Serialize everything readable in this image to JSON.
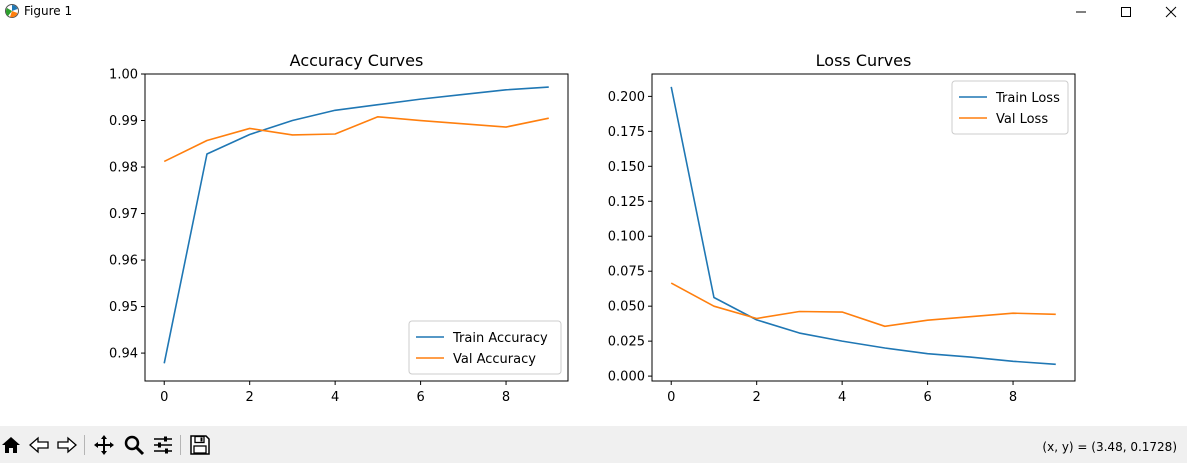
{
  "window": {
    "title": "Figure 1"
  },
  "window_controls": {
    "minimize": "minimize-icon",
    "maximize": "maximize-icon",
    "close": "close-icon"
  },
  "toolbar": {
    "tools": [
      "home-icon",
      "back-arrow-icon",
      "forward-arrow-icon",
      "pan-icon",
      "zoom-icon",
      "configure-subplots-icon",
      "save-icon"
    ],
    "coords": "(x, y) = (3.48, 0.1728)"
  },
  "colors": {
    "train": "#1f77b4",
    "val": "#ff7f0e"
  },
  "chart_data": [
    {
      "type": "line",
      "title": "Accuracy Curves",
      "xlim": [
        -0.45,
        9.45
      ],
      "ylim": [
        0.934,
        1.0
      ],
      "xticks": [
        0,
        2,
        4,
        6,
        8
      ],
      "xtick_labels": [
        "0",
        "2",
        "4",
        "6",
        "8"
      ],
      "yticks": [
        0.94,
        0.95,
        0.96,
        0.97,
        0.98,
        0.99,
        1.0
      ],
      "ytick_labels": [
        "0.94",
        "0.95",
        "0.96",
        "0.97",
        "0.98",
        "0.99",
        "1.00"
      ],
      "legend_position": "lower-right",
      "x": [
        0,
        1,
        2,
        3,
        4,
        5,
        6,
        7,
        8,
        9
      ],
      "series": [
        {
          "name": "Train Accuracy",
          "color": "#1f77b4",
          "values": [
            0.9378,
            0.9828,
            0.987,
            0.99,
            0.9922,
            0.9934,
            0.9946,
            0.9956,
            0.9966,
            0.9972
          ]
        },
        {
          "name": "Val Accuracy",
          "color": "#ff7f0e",
          "values": [
            0.9812,
            0.9857,
            0.9883,
            0.9869,
            0.9871,
            0.9908,
            0.99,
            0.9893,
            0.9886,
            0.9905
          ]
        }
      ]
    },
    {
      "type": "line",
      "title": "Loss Curves",
      "xlim": [
        -0.45,
        9.45
      ],
      "ylim": [
        -0.0035,
        0.216
      ],
      "xticks": [
        0,
        2,
        4,
        6,
        8
      ],
      "xtick_labels": [
        "0",
        "2",
        "4",
        "6",
        "8"
      ],
      "yticks": [
        0.0,
        0.025,
        0.05,
        0.075,
        0.1,
        0.125,
        0.15,
        0.175,
        0.2
      ],
      "ytick_labels": [
        "0.000",
        "0.025",
        "0.050",
        "0.075",
        "0.100",
        "0.125",
        "0.150",
        "0.175",
        "0.200"
      ],
      "legend_position": "upper-right",
      "x": [
        0,
        1,
        2,
        3,
        4,
        5,
        6,
        7,
        8,
        9
      ],
      "series": [
        {
          "name": "Train Loss",
          "color": "#1f77b4",
          "values": [
            0.2068,
            0.0562,
            0.0402,
            0.0308,
            0.025,
            0.0201,
            0.016,
            0.0136,
            0.0106,
            0.0084
          ]
        },
        {
          "name": "Val Loss",
          "color": "#ff7f0e",
          "values": [
            0.0665,
            0.05,
            0.0412,
            0.0462,
            0.0458,
            0.0356,
            0.04,
            0.0425,
            0.045,
            0.0442
          ]
        }
      ]
    }
  ]
}
